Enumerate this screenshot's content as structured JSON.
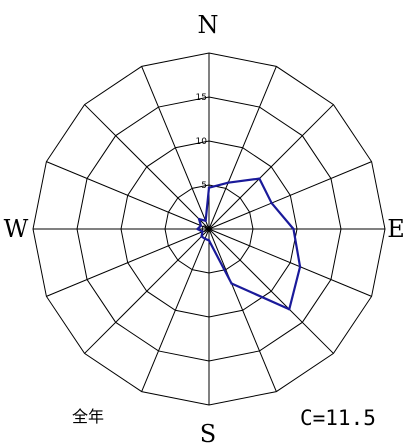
{
  "chart_data": {
    "type": "radar",
    "directions": [
      "N",
      "NNE",
      "NE",
      "ENE",
      "E",
      "ESE",
      "SE",
      "SSE",
      "S",
      "SSW",
      "SW",
      "WSW",
      "W",
      "WNW",
      "NW",
      "NNW"
    ],
    "values": [
      4.7,
      5.7,
      8.1,
      7.7,
      9.6,
      11.2,
      12.9,
      6.7,
      1.3,
      1.2,
      1.2,
      0.8,
      1.3,
      1.0,
      1.6,
      1.0
    ],
    "rlim": [
      0,
      20
    ],
    "rings": [
      5,
      10,
      15,
      20
    ],
    "tick_labels": [
      "0",
      "5",
      "10",
      "15"
    ],
    "compass_labels": {
      "north": "N",
      "east": "E",
      "south": "S",
      "west": "W"
    },
    "period_label": "全年",
    "calm_label": "C=11.5",
    "series_color": "#1a1a9a"
  }
}
